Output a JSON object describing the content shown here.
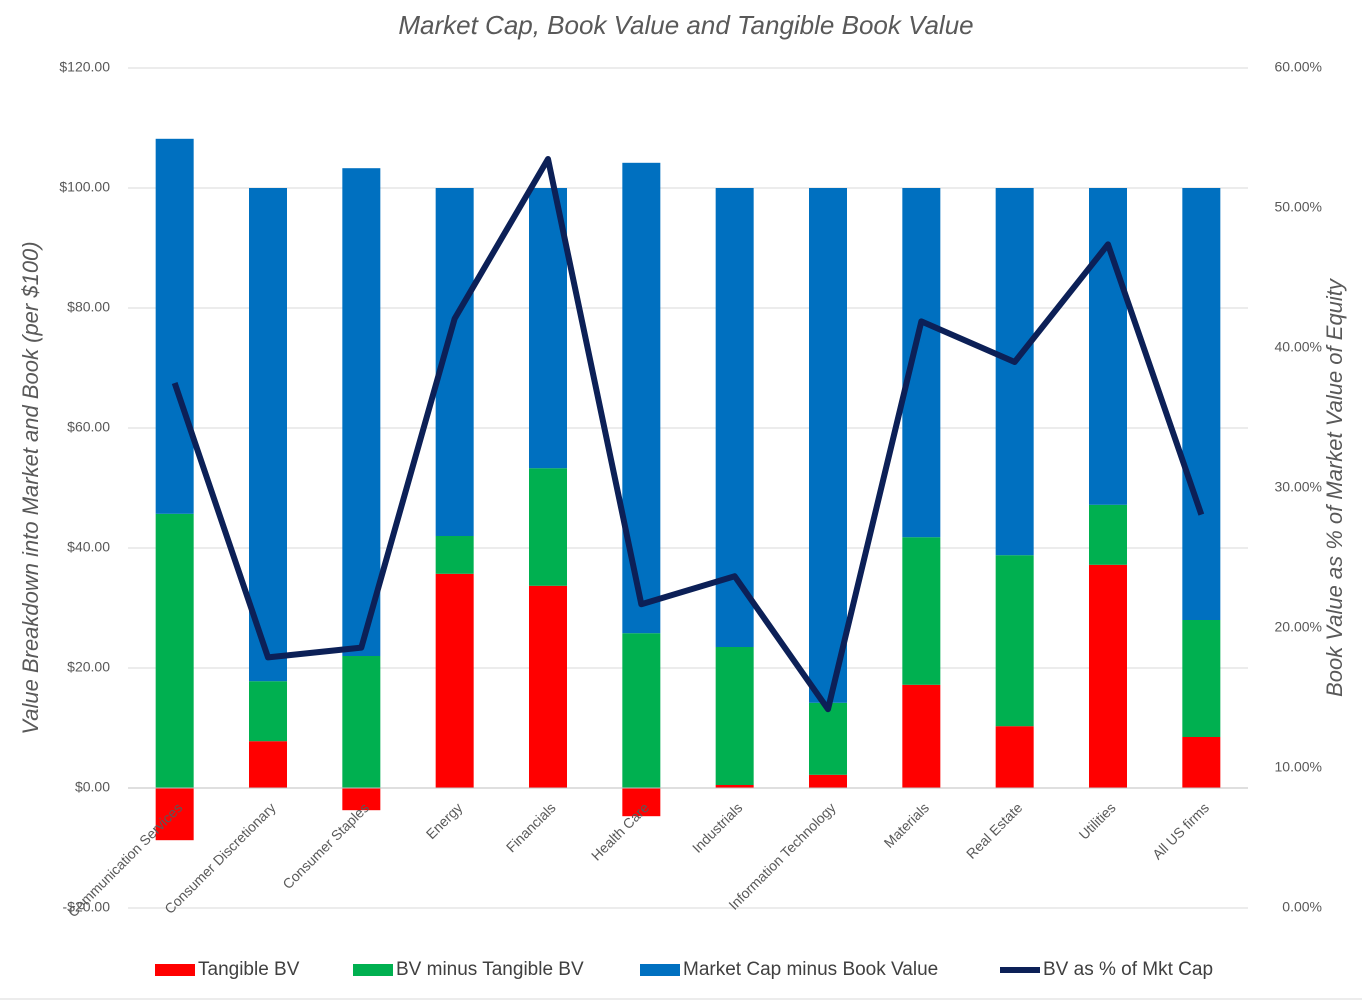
{
  "chart_data": {
    "type": "stacked-bar-line",
    "title": "Market Cap, Book Value and Tangible Book Value",
    "y_label": "Value Breakdown into Market and Book (per $100)",
    "y2_label": "Book Value as % of Market Value of Equity",
    "categories": [
      "Communication Services",
      "Consumer Discretionary",
      "Consumer Staples",
      "Energy",
      "Financials",
      "Health Care",
      "Industrials",
      "Information Technology",
      "Materials",
      "Real Estate",
      "Utilities",
      "All US firms"
    ],
    "series": [
      {
        "name": "Tangible BV",
        "type": "bar",
        "color": "#ff0000",
        "values": [
          -8.7,
          7.8,
          -3.7,
          35.7,
          33.7,
          -4.7,
          0.5,
          2.2,
          17.2,
          10.3,
          37.2,
          8.5
        ]
      },
      {
        "name": "BV minus Tangible BV",
        "type": "bar",
        "color": "#00b050",
        "values": [
          45.7,
          10,
          22,
          6.3,
          19.6,
          25.8,
          23,
          12,
          24.6,
          28.5,
          10,
          19.5
        ]
      },
      {
        "name": "Market Cap minus Book Value",
        "type": "bar",
        "color": "#0070c0",
        "values": [
          62.5,
          82.2,
          81.3,
          58,
          46.7,
          78.4,
          76.5,
          85.8,
          58.2,
          61.2,
          52.8,
          72
        ]
      },
      {
        "name": "BV as % of Mkt Cap",
        "type": "line",
        "axis": "y2",
        "color": "#0c2057",
        "values": [
          37.5,
          17.9,
          18.6,
          42.1,
          53.5,
          21.7,
          23.7,
          14.2,
          41.9,
          39,
          47.4,
          28.1
        ]
      }
    ],
    "ylim": [
      -20,
      120
    ],
    "yticks": [
      {
        "value": -20,
        "label": "-$20.00"
      },
      {
        "value": 0,
        "label": "$0.00"
      },
      {
        "value": 20,
        "label": "$20.00"
      },
      {
        "value": 40,
        "label": "$40.00"
      },
      {
        "value": 60,
        "label": "$60.00"
      },
      {
        "value": 80,
        "label": "$80.00"
      },
      {
        "value": 100,
        "label": "$100.00"
      },
      {
        "value": 120,
        "label": "$120.00"
      }
    ],
    "y2lim": [
      0,
      60
    ],
    "y2ticks": [
      {
        "value": 0,
        "label": "0.00%"
      },
      {
        "value": 10,
        "label": "10.00%"
      },
      {
        "value": 20,
        "label": "20.00%"
      },
      {
        "value": 30,
        "label": "30.00%"
      },
      {
        "value": 40,
        "label": "40.00%"
      },
      {
        "value": 50,
        "label": "50.00%"
      },
      {
        "value": 60,
        "label": "60.00%"
      }
    ],
    "grid": true,
    "legend": "bottom"
  }
}
